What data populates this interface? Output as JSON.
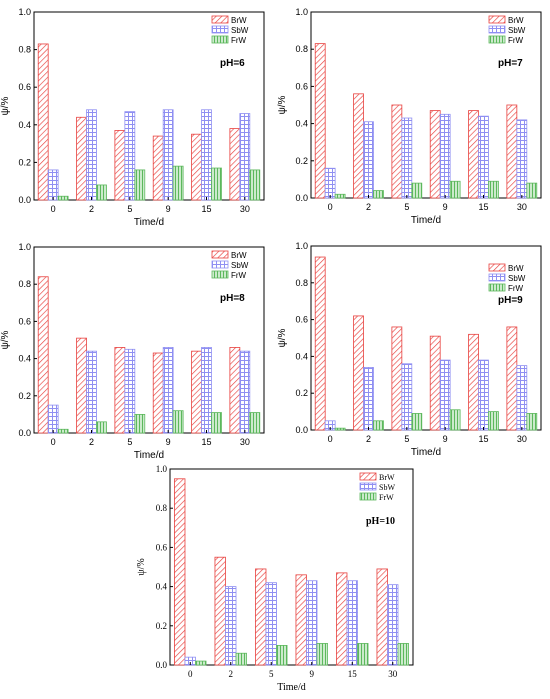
{
  "chart_data": [
    {
      "type": "bar",
      "annotation": "pH=6",
      "categories": [
        "0",
        "2",
        "5",
        "9",
        "15",
        "30"
      ],
      "series": [
        {
          "name": "BrW",
          "values": [
            0.83,
            0.44,
            0.37,
            0.34,
            0.35,
            0.38
          ]
        },
        {
          "name": "SbW",
          "values": [
            0.16,
            0.48,
            0.47,
            0.48,
            0.48,
            0.46
          ]
        },
        {
          "name": "FrW",
          "values": [
            0.02,
            0.08,
            0.16,
            0.18,
            0.17,
            0.16
          ]
        }
      ],
      "xlabel": "Time/d",
      "ylabel": "ψ/%",
      "ylim": [
        0,
        1.0
      ],
      "yticks": [
        "0.0",
        "0.2",
        "0.4",
        "0.6",
        "0.8",
        "1.0"
      ],
      "legend": "top-right"
    },
    {
      "type": "bar",
      "annotation": "pH=7",
      "categories": [
        "0",
        "2",
        "5",
        "9",
        "15",
        "30"
      ],
      "series": [
        {
          "name": "BrW",
          "values": [
            0.83,
            0.56,
            0.5,
            0.47,
            0.47,
            0.5
          ]
        },
        {
          "name": "SbW",
          "values": [
            0.16,
            0.41,
            0.43,
            0.45,
            0.44,
            0.42
          ]
        },
        {
          "name": "FrW",
          "values": [
            0.02,
            0.04,
            0.08,
            0.09,
            0.09,
            0.08
          ]
        }
      ],
      "xlabel": "Time/d",
      "ylabel": "ψ/%",
      "ylim": [
        0,
        1.0
      ],
      "yticks": [
        "0.0",
        "0.2",
        "0.4",
        "0.6",
        "0.8",
        "1.0"
      ],
      "legend": "top-right"
    },
    {
      "type": "bar",
      "annotation": "pH=8",
      "categories": [
        "0",
        "2",
        "5",
        "9",
        "15",
        "30"
      ],
      "series": [
        {
          "name": "BrW",
          "values": [
            0.84,
            0.51,
            0.46,
            0.43,
            0.44,
            0.46
          ]
        },
        {
          "name": "SbW",
          "values": [
            0.15,
            0.44,
            0.45,
            0.46,
            0.46,
            0.44
          ]
        },
        {
          "name": "FrW",
          "values": [
            0.02,
            0.06,
            0.1,
            0.12,
            0.11,
            0.11
          ]
        }
      ],
      "xlabel": "Time/d",
      "ylabel": "ψ/%",
      "ylim": [
        0,
        1.0
      ],
      "yticks": [
        "0.0",
        "0.2",
        "0.4",
        "0.6",
        "0.8",
        "1.0"
      ],
      "legend": "top-right"
    },
    {
      "type": "bar",
      "annotation": "pH=9",
      "categories": [
        "0",
        "2",
        "5",
        "9",
        "15",
        "30"
      ],
      "series": [
        {
          "name": "BrW",
          "values": [
            0.94,
            0.62,
            0.56,
            0.51,
            0.52,
            0.56
          ]
        },
        {
          "name": "SbW",
          "values": [
            0.05,
            0.34,
            0.36,
            0.38,
            0.38,
            0.35
          ]
        },
        {
          "name": "FrW",
          "values": [
            0.01,
            0.05,
            0.09,
            0.11,
            0.1,
            0.09
          ]
        }
      ],
      "xlabel": "Time/d",
      "ylabel": "ψ/%",
      "ylim": [
        0,
        1.0
      ],
      "yticks": [
        "0.0",
        "0.2",
        "0.4",
        "0.6",
        "0.8",
        "1.0"
      ],
      "legend": "top-right"
    },
    {
      "type": "bar",
      "annotation": "pH=10",
      "categories": [
        "0",
        "2",
        "5",
        "9",
        "15",
        "30"
      ],
      "series": [
        {
          "name": "BrW",
          "values": [
            0.95,
            0.55,
            0.49,
            0.46,
            0.47,
            0.49
          ]
        },
        {
          "name": "SbW",
          "values": [
            0.04,
            0.4,
            0.42,
            0.43,
            0.43,
            0.41
          ]
        },
        {
          "name": "FrW",
          "values": [
            0.02,
            0.06,
            0.1,
            0.11,
            0.11,
            0.11
          ]
        }
      ],
      "xlabel": "Time/d",
      "ylabel": "ψ/%",
      "ylim": [
        0,
        1.0
      ],
      "yticks": [
        "0.0",
        "0.2",
        "0.4",
        "0.6",
        "0.8",
        "1.0"
      ],
      "legend": "top-right"
    }
  ],
  "colors": {
    "BrW": "#e8413e",
    "SbW": "#8f8ff2",
    "FrW": "#5cb85c"
  }
}
